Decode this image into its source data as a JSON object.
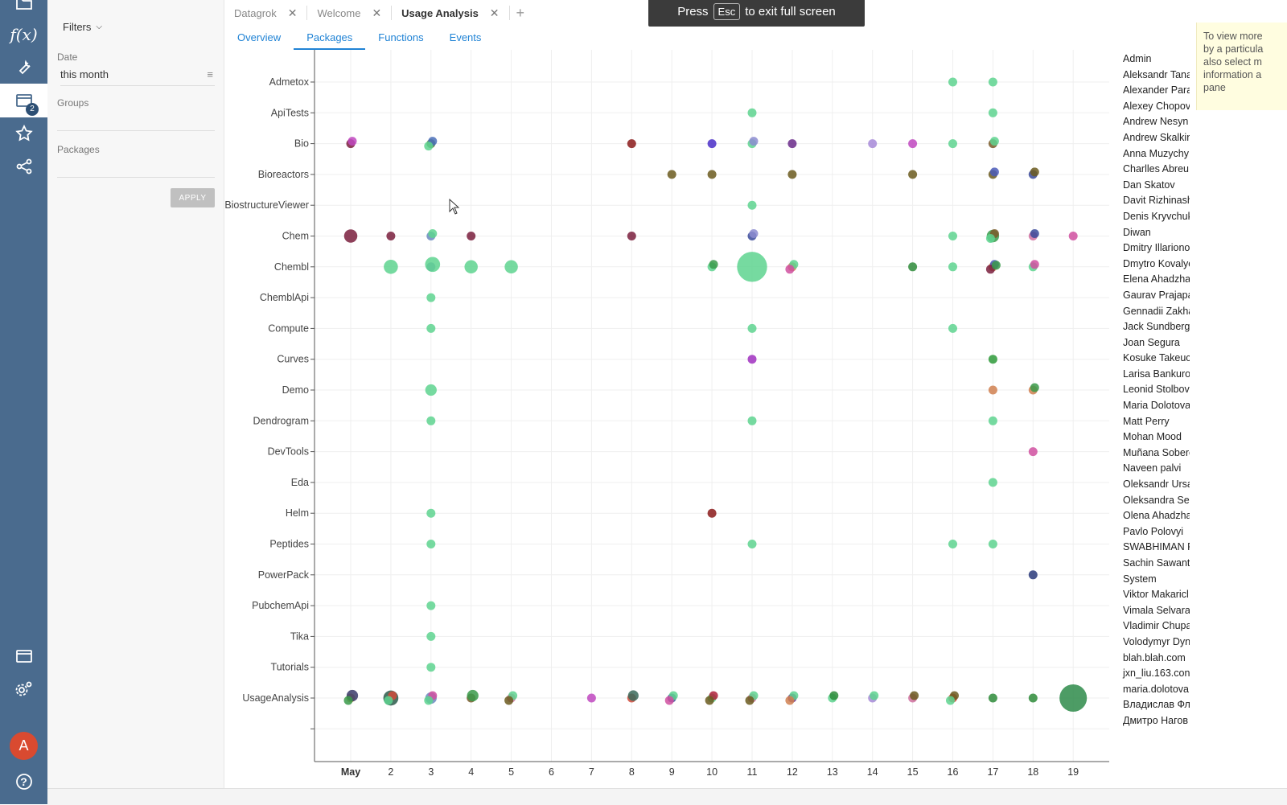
{
  "sidebar": {
    "items": [
      {
        "name": "folder-icon"
      },
      {
        "name": "functions-icon",
        "label": "f(x)"
      },
      {
        "name": "wrench-icon"
      },
      {
        "name": "windows-icon",
        "badge": "2",
        "active": true
      },
      {
        "name": "star-icon"
      },
      {
        "name": "share-icon"
      }
    ],
    "bottom": [
      {
        "name": "panel-icon"
      },
      {
        "name": "settings-icon"
      }
    ],
    "avatar": "A",
    "help": "?"
  },
  "filters": {
    "header": "Filters",
    "date_label": "Date",
    "date_value": "this month",
    "groups_label": "Groups",
    "packages_label": "Packages",
    "apply": "APPLY"
  },
  "tabs": [
    {
      "label": "Datagrok",
      "active": false
    },
    {
      "label": "Welcome",
      "active": false
    },
    {
      "label": "Usage Analysis",
      "active": true
    }
  ],
  "subtabs": [
    {
      "label": "Overview",
      "active": false
    },
    {
      "label": "Packages",
      "active": true
    },
    {
      "label": "Functions",
      "active": false
    },
    {
      "label": "Events",
      "active": false
    }
  ],
  "fullscreen_banner": {
    "before": "Press",
    "key": "Esc",
    "after": "to exit full screen"
  },
  "hint": {
    "lines": [
      "To view more",
      "by a particula",
      "also select m",
      "information a",
      "pane"
    ]
  },
  "colors": {
    "sidebar": "#4a6b8e",
    "accent": "#2083d5",
    "avatar": "#d94a30"
  },
  "chart_data": {
    "type": "scatter",
    "title": "",
    "xlabel": "",
    "ylabel": "",
    "x_categories": [
      "May",
      "2",
      "3",
      "4",
      "5",
      "6",
      "7",
      "8",
      "9",
      "10",
      "11",
      "12",
      "13",
      "14",
      "15",
      "16",
      "17",
      "18",
      "19"
    ],
    "y_categories": [
      "Admetox",
      "ApiTests",
      "Bio",
      "Bioreactors",
      "BiostructureViewer",
      "Chem",
      "Chembl",
      "ChemblApi",
      "Compute",
      "Curves",
      "Demo",
      "Dendrogram",
      "DevTools",
      "Eda",
      "Helm",
      "Peptides",
      "PowerPack",
      "PubchemApi",
      "Tika",
      "Tutorials",
      "UsageAnalysis",
      "-"
    ],
    "grid": true,
    "legend_position": "right",
    "legend": [
      "Admin",
      "Aleksandr Tana",
      "Alexander Para",
      "Alexey Chopov",
      "Andrew Nesyn",
      "Andrew Skalkin",
      "Anna Muzychy",
      "Charlles Abreu",
      "Dan Skatov",
      "Davit Rizhinash",
      "Denis Kryvchuk",
      "Diwan",
      "Dmitry Illariono",
      "Dmytro Kovalyo",
      "Elena Ahadzha",
      "Gaurav Prajapa",
      "Gennadii Zakha",
      "Jack Sundberg",
      "Joan Segura",
      "Kosuke Takeuc",
      "Larisa Bankuro",
      "Leonid Stolbov",
      "Maria Dolotova",
      "Matt Perry",
      "Mohan Mood",
      "Muñana Sobero",
      "Naveen palvi",
      "Oleksandr Ursa",
      "Oleksandra Ser",
      "Olena Ahadzha",
      "Pavlo Polovyi",
      "SWABHIMAN F",
      "Sachin Sawant",
      "System",
      "Viktor Makaricl",
      "Vimala Selvara",
      "Vladimir Chupa",
      "Volodymyr Dyn",
      "blah.blah.com",
      "jxn_liu.163.con",
      "maria.dolotova",
      "Владислав Фл",
      "Дмитро Нагов"
    ],
    "points": [
      {
        "x": 16,
        "y": "Admetox",
        "c": "#5ed38f"
      },
      {
        "x": 17,
        "y": "Admetox",
        "c": "#5ed38f"
      },
      {
        "x": 11,
        "y": "ApiTests",
        "c": "#5ed38f"
      },
      {
        "x": 17,
        "y": "ApiTests",
        "c": "#5ed38f"
      },
      {
        "x": 1,
        "y": "Bio",
        "c": "#7a1f3d"
      },
      {
        "x": 1,
        "y": "Bio",
        "c": "#c048c0"
      },
      {
        "x": 3,
        "y": "Bio",
        "c": "#4a7a3a"
      },
      {
        "x": 3,
        "y": "Bio",
        "c": "#4a6eb8"
      },
      {
        "x": 3,
        "y": "Bio",
        "c": "#5ed38f"
      },
      {
        "x": 8,
        "y": "Bio",
        "c": "#8b1a1a"
      },
      {
        "x": 10,
        "y": "Bio",
        "c": "#4a2ec8"
      },
      {
        "x": 11,
        "y": "Bio",
        "c": "#5ed38f"
      },
      {
        "x": 11,
        "y": "Bio",
        "c": "#8c8cd0"
      },
      {
        "x": 12,
        "y": "Bio",
        "c": "#6a2a8a"
      },
      {
        "x": 14,
        "y": "Bio",
        "c": "#a78ad8"
      },
      {
        "x": 15,
        "y": "Bio",
        "c": "#c048c0"
      },
      {
        "x": 16,
        "y": "Bio",
        "c": "#5ed38f"
      },
      {
        "x": 17,
        "y": "Bio",
        "c": "#7a5a2a"
      },
      {
        "x": 17,
        "y": "Bio",
        "c": "#5ed38f"
      },
      {
        "x": 9,
        "y": "Bioreactors",
        "c": "#6b5a1f"
      },
      {
        "x": 10,
        "y": "Bioreactors",
        "c": "#6b5a1f"
      },
      {
        "x": 12,
        "y": "Bioreactors",
        "c": "#6b5a1f"
      },
      {
        "x": 15,
        "y": "Bioreactors",
        "c": "#6b5a1f"
      },
      {
        "x": 17,
        "y": "Bioreactors",
        "c": "#6b5a1f"
      },
      {
        "x": 17,
        "y": "Bioreactors",
        "c": "#4a5ab8"
      },
      {
        "x": 18,
        "y": "Bioreactors",
        "c": "#3a4a9a"
      },
      {
        "x": 18,
        "y": "Bioreactors",
        "c": "#6b5a1f"
      },
      {
        "x": 11,
        "y": "BiostructureViewer",
        "c": "#5ed38f"
      },
      {
        "x": 1,
        "y": "Chem",
        "c": "#7a1f3d",
        "s": 1.5
      },
      {
        "x": 2,
        "y": "Chem",
        "c": "#7a1f3d"
      },
      {
        "x": 3,
        "y": "Chem",
        "c": "#6a8ac0"
      },
      {
        "x": 3,
        "y": "Chem",
        "c": "#5ed38f"
      },
      {
        "x": 4,
        "y": "Chem",
        "c": "#7a1f3d"
      },
      {
        "x": 8,
        "y": "Chem",
        "c": "#7a1f3d"
      },
      {
        "x": 11,
        "y": "Chem",
        "c": "#3a4a9a"
      },
      {
        "x": 11,
        "y": "Chem",
        "c": "#8c8cd0"
      },
      {
        "x": 16,
        "y": "Chem",
        "c": "#5ed38f"
      },
      {
        "x": 17,
        "y": "Chem",
        "c": "#3a9a4a",
        "s": 1.4
      },
      {
        "x": 17,
        "y": "Chem",
        "c": "#7a5a2a"
      },
      {
        "x": 17,
        "y": "Chem",
        "c": "#5ed38f"
      },
      {
        "x": 18,
        "y": "Chem",
        "c": "#d070a0"
      },
      {
        "x": 18,
        "y": "Chem",
        "c": "#3a4a9a"
      },
      {
        "x": 19,
        "y": "Chem",
        "c": "#d050a0"
      },
      {
        "x": 2,
        "y": "Chembl",
        "c": "#5ed38f",
        "s": 1.6
      },
      {
        "x": 3,
        "y": "Chembl",
        "c": "#6a8ac0"
      },
      {
        "x": 3,
        "y": "Chembl",
        "c": "#5ed38f",
        "s": 1.7
      },
      {
        "x": 4,
        "y": "Chembl",
        "c": "#5ed38f",
        "s": 1.5
      },
      {
        "x": 5,
        "y": "Chembl",
        "c": "#5ed38f",
        "s": 1.5
      },
      {
        "x": 10,
        "y": "Chembl",
        "c": "#5ed38f"
      },
      {
        "x": 10,
        "y": "Chembl",
        "c": "#3a9a4a"
      },
      {
        "x": 11,
        "y": "Chembl",
        "c": "#5ed38f",
        "s": 3.4
      },
      {
        "x": 12,
        "y": "Chembl",
        "c": "#d08050"
      },
      {
        "x": 12,
        "y": "Chembl",
        "c": "#5ed38f"
      },
      {
        "x": 12,
        "y": "Chembl",
        "c": "#d050a0"
      },
      {
        "x": 15,
        "y": "Chembl",
        "c": "#2e8b3a"
      },
      {
        "x": 16,
        "y": "Chembl",
        "c": "#5ed38f"
      },
      {
        "x": 17,
        "y": "Chembl",
        "c": "#d08050"
      },
      {
        "x": 17,
        "y": "Chembl",
        "c": "#4a5ab8"
      },
      {
        "x": 17,
        "y": "Chembl",
        "c": "#7a1f3d"
      },
      {
        "x": 17,
        "y": "Chembl",
        "c": "#3a9a4a"
      },
      {
        "x": 18,
        "y": "Chembl",
        "c": "#5ed38f"
      },
      {
        "x": 18,
        "y": "Chembl",
        "c": "#d050a0"
      },
      {
        "x": 3,
        "y": "ChemblApi",
        "c": "#5ed38f"
      },
      {
        "x": 3,
        "y": "Compute",
        "c": "#5ed38f"
      },
      {
        "x": 11,
        "y": "Compute",
        "c": "#5ed38f"
      },
      {
        "x": 16,
        "y": "Compute",
        "c": "#5ed38f"
      },
      {
        "x": 11,
        "y": "Curves",
        "c": "#a030c0"
      },
      {
        "x": 17,
        "y": "Curves",
        "c": "#2e9a3a"
      },
      {
        "x": 3,
        "y": "Demo",
        "c": "#5ed38f",
        "s": 1.3
      },
      {
        "x": 17,
        "y": "Demo",
        "c": "#d08050"
      },
      {
        "x": 18,
        "y": "Demo",
        "c": "#d08050"
      },
      {
        "x": 18,
        "y": "Demo",
        "c": "#3a9a4a"
      },
      {
        "x": 3,
        "y": "Dendrogram",
        "c": "#5ed38f"
      },
      {
        "x": 11,
        "y": "Dendrogram",
        "c": "#5ed38f"
      },
      {
        "x": 17,
        "y": "Dendrogram",
        "c": "#5ed38f"
      },
      {
        "x": 18,
        "y": "DevTools",
        "c": "#d050a0"
      },
      {
        "x": 17,
        "y": "Eda",
        "c": "#5ed38f"
      },
      {
        "x": 3,
        "y": "Helm",
        "c": "#5ed38f"
      },
      {
        "x": 10,
        "y": "Helm",
        "c": "#8b1a1a"
      },
      {
        "x": 3,
        "y": "Peptides",
        "c": "#5ed38f"
      },
      {
        "x": 11,
        "y": "Peptides",
        "c": "#5ed38f"
      },
      {
        "x": 16,
        "y": "Peptides",
        "c": "#5ed38f"
      },
      {
        "x": 17,
        "y": "Peptides",
        "c": "#5ed38f"
      },
      {
        "x": 18,
        "y": "PowerPack",
        "c": "#2a3a7a"
      },
      {
        "x": 3,
        "y": "PubchemApi",
        "c": "#5ed38f"
      },
      {
        "x": 3,
        "y": "Tika",
        "c": "#5ed38f"
      },
      {
        "x": 3,
        "y": "Tutorials",
        "c": "#5ed38f"
      },
      {
        "x": 1,
        "y": "UsageAnalysis",
        "c": "#d0a050"
      },
      {
        "x": 1,
        "y": "UsageAnalysis",
        "c": "#3a3a6a",
        "s": 1.3
      },
      {
        "x": 1,
        "y": "UsageAnalysis",
        "c": "#3a9a4a"
      },
      {
        "x": 2,
        "y": "UsageAnalysis",
        "c": "#2a5a4a",
        "s": 1.7
      },
      {
        "x": 2,
        "y": "UsageAnalysis",
        "c": "#d04a3a"
      },
      {
        "x": 2,
        "y": "UsageAnalysis",
        "c": "#5ed38f"
      },
      {
        "x": 3,
        "y": "UsageAnalysis",
        "c": "#6a8ac0",
        "s": 1.3
      },
      {
        "x": 3,
        "y": "UsageAnalysis",
        "c": "#d050a0"
      },
      {
        "x": 3,
        "y": "UsageAnalysis",
        "c": "#5ed38f"
      },
      {
        "x": 4,
        "y": "UsageAnalysis",
        "c": "#7a5a2a"
      },
      {
        "x": 4,
        "y": "UsageAnalysis",
        "c": "#3a9a4a",
        "s": 1.3
      },
      {
        "x": 5,
        "y": "UsageAnalysis",
        "c": "#d070a0"
      },
      {
        "x": 5,
        "y": "UsageAnalysis",
        "c": "#5ed38f"
      },
      {
        "x": 5,
        "y": "UsageAnalysis",
        "c": "#6b5a1f"
      },
      {
        "x": 7,
        "y": "UsageAnalysis",
        "c": "#c048c0"
      },
      {
        "x": 8,
        "y": "UsageAnalysis",
        "c": "#d04a3a"
      },
      {
        "x": 8,
        "y": "UsageAnalysis",
        "c": "#3a6a5a",
        "s": 1.2
      },
      {
        "x": 9,
        "y": "UsageAnalysis",
        "c": "#3a4a9a"
      },
      {
        "x": 9,
        "y": "UsageAnalysis",
        "c": "#5ed38f"
      },
      {
        "x": 9,
        "y": "UsageAnalysis",
        "c": "#d050a0"
      },
      {
        "x": 10,
        "y": "UsageAnalysis",
        "c": "#5ed38f"
      },
      {
        "x": 10,
        "y": "UsageAnalysis",
        "c": "#b0203a"
      },
      {
        "x": 10,
        "y": "UsageAnalysis",
        "c": "#6b5a1f"
      },
      {
        "x": 11,
        "y": "UsageAnalysis",
        "c": "#d070a0"
      },
      {
        "x": 11,
        "y": "UsageAnalysis",
        "c": "#5ed38f"
      },
      {
        "x": 11,
        "y": "UsageAnalysis",
        "c": "#6b5a1f"
      },
      {
        "x": 12,
        "y": "UsageAnalysis",
        "c": "#6a2a8a"
      },
      {
        "x": 12,
        "y": "UsageAnalysis",
        "c": "#5ed38f"
      },
      {
        "x": 12,
        "y": "UsageAnalysis",
        "c": "#d08050"
      },
      {
        "x": 13,
        "y": "UsageAnalysis",
        "c": "#5ed38f"
      },
      {
        "x": 13,
        "y": "UsageAnalysis",
        "c": "#2e8b3a"
      },
      {
        "x": 14,
        "y": "UsageAnalysis",
        "c": "#a78ad8"
      },
      {
        "x": 14,
        "y": "UsageAnalysis",
        "c": "#5ed38f"
      },
      {
        "x": 15,
        "y": "UsageAnalysis",
        "c": "#d070a0"
      },
      {
        "x": 15,
        "y": "UsageAnalysis",
        "c": "#6b5a1f"
      },
      {
        "x": 16,
        "y": "UsageAnalysis",
        "c": "#d04a3a"
      },
      {
        "x": 16,
        "y": "UsageAnalysis",
        "c": "#6b5a1f"
      },
      {
        "x": 16,
        "y": "UsageAnalysis",
        "c": "#5ed38f"
      },
      {
        "x": 17,
        "y": "UsageAnalysis",
        "c": "#2e8b3a"
      },
      {
        "x": 18,
        "y": "UsageAnalysis",
        "c": "#2e8b3a"
      },
      {
        "x": 19,
        "y": "UsageAnalysis",
        "c": "#2e8b4a",
        "s": 3.1
      }
    ]
  }
}
